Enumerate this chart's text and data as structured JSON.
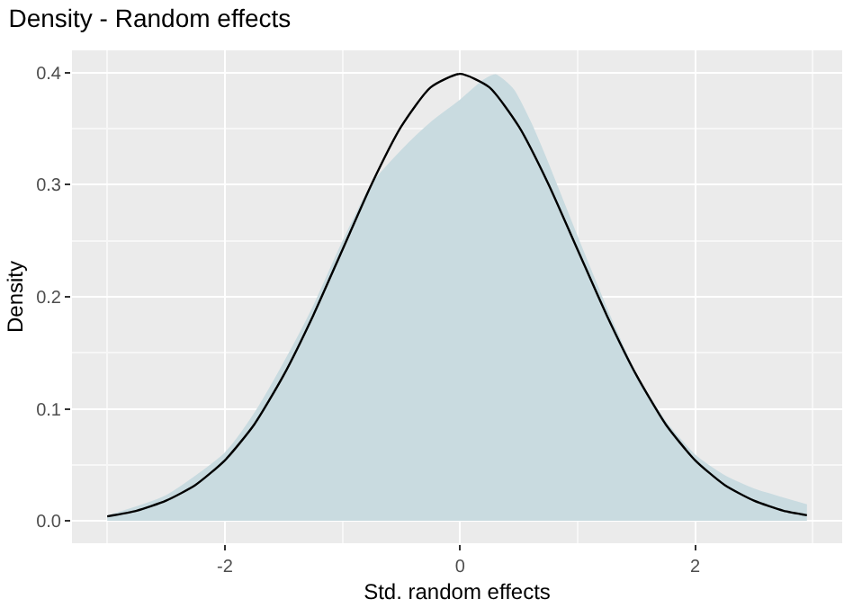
{
  "chart_data": {
    "type": "area",
    "title": "Density - Random effects",
    "xlabel": "Std. random effects",
    "ylabel": "Density",
    "series": [
      {
        "color": "#c9dbe0",
        "x": [
          -3.0,
          -2.5,
          -2.0,
          -1.75,
          -1.5,
          -1.25,
          -1.0,
          -0.75,
          -0.5,
          -0.25,
          0.0,
          0.2,
          0.3,
          0.45,
          0.6,
          0.75,
          1.0,
          1.25,
          1.5,
          1.75,
          2.0,
          2.25,
          2.5,
          2.75,
          2.95
        ],
        "values": [
          0.004,
          0.022,
          0.06,
          0.095,
          0.14,
          0.19,
          0.248,
          0.3,
          0.33,
          0.355,
          0.375,
          0.393,
          0.398,
          0.385,
          0.355,
          0.318,
          0.252,
          0.188,
          0.13,
          0.088,
          0.058,
          0.04,
          0.028,
          0.02,
          0.014
        ]
      },
      {
        "type": "line",
        "color": "#000000",
        "x": [
          -3.0,
          -2.75,
          -2.5,
          -2.25,
          -2.0,
          -1.75,
          -1.5,
          -1.25,
          -1.0,
          -0.75,
          -0.5,
          -0.25,
          0.0,
          0.25,
          0.5,
          0.75,
          1.0,
          1.25,
          1.5,
          1.75,
          2.0,
          2.25,
          2.5,
          2.75,
          2.95
        ],
        "values": [
          0.004,
          0.009,
          0.018,
          0.032,
          0.054,
          0.086,
          0.13,
          0.183,
          0.242,
          0.301,
          0.352,
          0.387,
          0.399,
          0.387,
          0.352,
          0.301,
          0.242,
          0.183,
          0.13,
          0.086,
          0.054,
          0.032,
          0.018,
          0.009,
          0.005
        ]
      }
    ],
    "xlim": [
      -3.3,
      3.25
    ],
    "xticks": [
      -2,
      0,
      2
    ],
    "ylim": [
      -0.02,
      0.42
    ],
    "yticks": [
      {
        "value": 0,
        "label": "0.0"
      },
      0.1,
      0.2,
      0.3,
      0.4
    ],
    "grid": true
  }
}
